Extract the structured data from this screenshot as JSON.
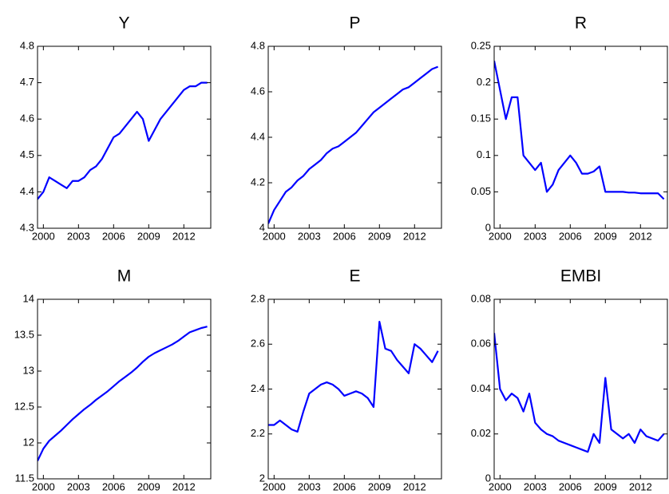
{
  "chart_data": [
    {
      "type": "line",
      "title": "Y",
      "x": [
        1999.5,
        2000,
        2000.5,
        2001,
        2001.5,
        2002,
        2002.5,
        2003,
        2003.5,
        2004,
        2004.5,
        2005,
        2005.5,
        2006,
        2006.5,
        2007,
        2007.5,
        2008,
        2008.5,
        2009,
        2009.5,
        2010,
        2010.5,
        2011,
        2011.5,
        2012,
        2012.5,
        2013,
        2013.5,
        2014
      ],
      "series": [
        {
          "name": "Y",
          "color": "#0000ff",
          "values": [
            4.38,
            4.4,
            4.44,
            4.43,
            4.42,
            4.41,
            4.43,
            4.43,
            4.44,
            4.46,
            4.47,
            4.49,
            4.52,
            4.55,
            4.56,
            4.58,
            4.6,
            4.62,
            4.6,
            4.54,
            4.57,
            4.6,
            4.62,
            4.64,
            4.66,
            4.68,
            4.69,
            4.69,
            4.7,
            4.7
          ]
        }
      ],
      "xlim": [
        1999.5,
        2014.3
      ],
      "xticks": [
        2000,
        2003,
        2006,
        2009,
        2012
      ],
      "ylim": [
        4.3,
        4.8
      ],
      "yticks": [
        4.3,
        4.4,
        4.5,
        4.6,
        4.7,
        4.8
      ]
    },
    {
      "type": "line",
      "title": "P",
      "x": [
        1999.5,
        2000,
        2000.5,
        2001,
        2001.5,
        2002,
        2002.5,
        2003,
        2003.5,
        2004,
        2004.5,
        2005,
        2005.5,
        2006,
        2006.5,
        2007,
        2007.5,
        2008,
        2008.5,
        2009,
        2009.5,
        2010,
        2010.5,
        2011,
        2011.5,
        2012,
        2012.5,
        2013,
        2013.5,
        2014
      ],
      "series": [
        {
          "name": "P",
          "color": "#0000ff",
          "values": [
            4.02,
            4.08,
            4.12,
            4.16,
            4.18,
            4.21,
            4.23,
            4.26,
            4.28,
            4.3,
            4.33,
            4.35,
            4.36,
            4.38,
            4.4,
            4.42,
            4.45,
            4.48,
            4.51,
            4.53,
            4.55,
            4.57,
            4.59,
            4.61,
            4.62,
            4.64,
            4.66,
            4.68,
            4.7,
            4.71
          ]
        }
      ],
      "xlim": [
        1999.5,
        2014.3
      ],
      "xticks": [
        2000,
        2003,
        2006,
        2009,
        2012
      ],
      "ylim": [
        4,
        4.8
      ],
      "yticks": [
        4,
        4.2,
        4.4,
        4.6,
        4.8
      ]
    },
    {
      "type": "line",
      "title": "R",
      "x": [
        1999.5,
        2000,
        2000.5,
        2001,
        2001.5,
        2002,
        2002.5,
        2003,
        2003.5,
        2004,
        2004.5,
        2005,
        2005.5,
        2006,
        2006.5,
        2007,
        2007.5,
        2008,
        2008.5,
        2009,
        2009.5,
        2010,
        2010.5,
        2011,
        2011.5,
        2012,
        2012.5,
        2013,
        2013.5,
        2014
      ],
      "series": [
        {
          "name": "R",
          "color": "#0000ff",
          "values": [
            0.23,
            0.19,
            0.15,
            0.18,
            0.18,
            0.1,
            0.09,
            0.08,
            0.09,
            0.05,
            0.06,
            0.08,
            0.09,
            0.1,
            0.09,
            0.075,
            0.075,
            0.078,
            0.085,
            0.05,
            0.05,
            0.05,
            0.05,
            0.049,
            0.049,
            0.048,
            0.048,
            0.048,
            0.048,
            0.04
          ]
        }
      ],
      "xlim": [
        1999.5,
        2014.3
      ],
      "xticks": [
        2000,
        2003,
        2006,
        2009,
        2012
      ],
      "ylim": [
        0,
        0.25
      ],
      "yticks": [
        0,
        0.05,
        0.1,
        0.15,
        0.2,
        0.25
      ]
    },
    {
      "type": "line",
      "title": "M",
      "x": [
        1999.5,
        2000,
        2000.5,
        2001,
        2001.5,
        2002,
        2002.5,
        2003,
        2003.5,
        2004,
        2004.5,
        2005,
        2005.5,
        2006,
        2006.5,
        2007,
        2007.5,
        2008,
        2008.5,
        2009,
        2009.5,
        2010,
        2010.5,
        2011,
        2011.5,
        2012,
        2012.5,
        2013,
        2013.5,
        2014
      ],
      "series": [
        {
          "name": "M",
          "color": "#0000ff",
          "values": [
            11.75,
            11.92,
            12.03,
            12.1,
            12.17,
            12.25,
            12.33,
            12.4,
            12.47,
            12.53,
            12.6,
            12.66,
            12.72,
            12.79,
            12.86,
            12.92,
            12.98,
            13.05,
            13.13,
            13.2,
            13.25,
            13.29,
            13.33,
            13.37,
            13.42,
            13.48,
            13.54,
            13.57,
            13.6,
            13.62
          ]
        }
      ],
      "xlim": [
        1999.5,
        2014.3
      ],
      "xticks": [
        2000,
        2003,
        2006,
        2009,
        2012
      ],
      "ylim": [
        11.5,
        14
      ],
      "yticks": [
        11.5,
        12,
        12.5,
        13,
        13.5,
        14
      ]
    },
    {
      "type": "line",
      "title": "E",
      "x": [
        1999.5,
        2000,
        2000.5,
        2001,
        2001.5,
        2002,
        2002.5,
        2003,
        2003.5,
        2004,
        2004.5,
        2005,
        2005.5,
        2006,
        2006.5,
        2007,
        2007.5,
        2008,
        2008.5,
        2009,
        2009.5,
        2010,
        2010.5,
        2011,
        2011.5,
        2012,
        2012.5,
        2013,
        2013.5,
        2014
      ],
      "series": [
        {
          "name": "E",
          "color": "#0000ff",
          "values": [
            2.24,
            2.24,
            2.26,
            2.24,
            2.22,
            2.21,
            2.3,
            2.38,
            2.4,
            2.42,
            2.43,
            2.42,
            2.4,
            2.37,
            2.38,
            2.39,
            2.38,
            2.36,
            2.32,
            2.7,
            2.58,
            2.57,
            2.53,
            2.5,
            2.47,
            2.6,
            2.58,
            2.55,
            2.52,
            2.57
          ]
        }
      ],
      "xlim": [
        1999.5,
        2014.3
      ],
      "xticks": [
        2000,
        2003,
        2006,
        2009,
        2012
      ],
      "ylim": [
        2,
        2.8
      ],
      "yticks": [
        2,
        2.2,
        2.4,
        2.6,
        2.8
      ]
    },
    {
      "type": "line",
      "title": "EMBI",
      "x": [
        1999.5,
        2000,
        2000.5,
        2001,
        2001.5,
        2002,
        2002.5,
        2003,
        2003.5,
        2004,
        2004.5,
        2005,
        2005.5,
        2006,
        2006.5,
        2007,
        2007.5,
        2008,
        2008.5,
        2009,
        2009.5,
        2010,
        2010.5,
        2011,
        2011.5,
        2012,
        2012.5,
        2013,
        2013.5,
        2014
      ],
      "series": [
        {
          "name": "EMBI",
          "color": "#0000ff",
          "values": [
            0.065,
            0.04,
            0.035,
            0.038,
            0.036,
            0.03,
            0.038,
            0.025,
            0.022,
            0.02,
            0.019,
            0.017,
            0.016,
            0.015,
            0.014,
            0.013,
            0.012,
            0.02,
            0.016,
            0.045,
            0.022,
            0.02,
            0.018,
            0.02,
            0.016,
            0.022,
            0.019,
            0.018,
            0.017,
            0.02
          ]
        }
      ],
      "xlim": [
        1999.5,
        2014.3
      ],
      "xticks": [
        2000,
        2003,
        2006,
        2009,
        2012
      ],
      "ylim": [
        0,
        0.08
      ],
      "yticks": [
        0,
        0.02,
        0.04,
        0.06,
        0.08
      ]
    }
  ]
}
